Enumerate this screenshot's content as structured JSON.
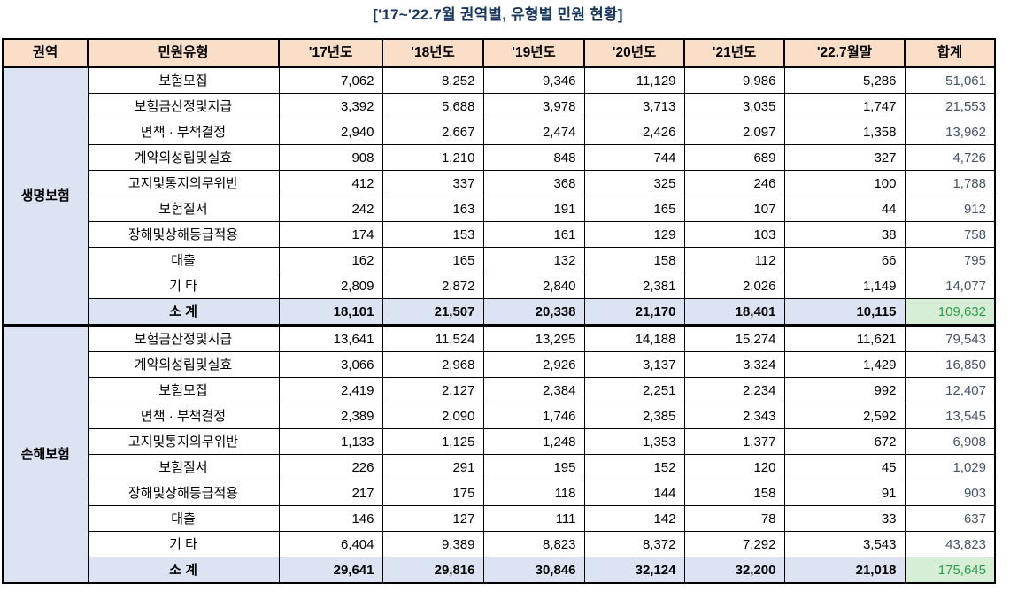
{
  "title": "['17~'22.7월 권역별, 유형별 민원 현황]",
  "colors": {
    "title_color": "#17375E",
    "header_bg": "#FBDEC7",
    "region_bg": "#DCE4F3",
    "subtotal_bg": "#DCE4F3",
    "total_col_text": "#44546A",
    "grand_total_bg": "#D6EED6",
    "grand_total_text": "#2F9E49",
    "border": "#000000"
  },
  "table": {
    "headers": [
      "권역",
      "민원유형",
      "'17년도",
      "'18년도",
      "'19년도",
      "'20년도",
      "'21년도",
      "'22.7월말",
      "합계"
    ],
    "sections": [
      {
        "region": "생명보험",
        "rows": [
          {
            "label": "보험모집",
            "values": [
              "7,062",
              "8,252",
              "9,346",
              "11,129",
              "9,986",
              "5,286",
              "51,061"
            ]
          },
          {
            "label": "보험금산정및지급",
            "values": [
              "3,392",
              "5,688",
              "3,978",
              "3,713",
              "3,035",
              "1,747",
              "21,553"
            ]
          },
          {
            "label": "면책 · 부책결정",
            "values": [
              "2,940",
              "2,667",
              "2,474",
              "2,426",
              "2,097",
              "1,358",
              "13,962"
            ]
          },
          {
            "label": "계약의성립및실효",
            "values": [
              "908",
              "1,210",
              "848",
              "744",
              "689",
              "327",
              "4,726"
            ]
          },
          {
            "label": "고지및통지의무위반",
            "values": [
              "412",
              "337",
              "368",
              "325",
              "246",
              "100",
              "1,788"
            ]
          },
          {
            "label": "보험질서",
            "values": [
              "242",
              "163",
              "191",
              "165",
              "107",
              "44",
              "912"
            ]
          },
          {
            "label": "장해및상해등급적용",
            "values": [
              "174",
              "153",
              "161",
              "129",
              "103",
              "38",
              "758"
            ]
          },
          {
            "label": "대출",
            "values": [
              "162",
              "165",
              "132",
              "158",
              "112",
              "66",
              "795"
            ]
          },
          {
            "label": "기 타",
            "values": [
              "2,809",
              "2,872",
              "2,840",
              "2,381",
              "2,026",
              "1,149",
              "14,077"
            ]
          }
        ],
        "subtotal": {
          "label": "소 계",
          "values": [
            "18,101",
            "21,507",
            "20,338",
            "21,170",
            "18,401",
            "10,115",
            "109,632"
          ]
        }
      },
      {
        "region": "손해보험",
        "rows": [
          {
            "label": "보험금산정및지급",
            "values": [
              "13,641",
              "11,524",
              "13,295",
              "14,188",
              "15,274",
              "11,621",
              "79,543"
            ]
          },
          {
            "label": "계약의성립및실효",
            "values": [
              "3,066",
              "2,968",
              "2,926",
              "3,137",
              "3,324",
              "1,429",
              "16,850"
            ]
          },
          {
            "label": "보험모집",
            "values": [
              "2,419",
              "2,127",
              "2,384",
              "2,251",
              "2,234",
              "992",
              "12,407"
            ]
          },
          {
            "label": "면책 · 부책결정",
            "values": [
              "2,389",
              "2,090",
              "1,746",
              "2,385",
              "2,343",
              "2,592",
              "13,545"
            ]
          },
          {
            "label": "고지및통지의무위반",
            "values": [
              "1,133",
              "1,125",
              "1,248",
              "1,353",
              "1,377",
              "672",
              "6,908"
            ]
          },
          {
            "label": "보험질서",
            "values": [
              "226",
              "291",
              "195",
              "152",
              "120",
              "45",
              "1,029"
            ]
          },
          {
            "label": "장해및상해등급적용",
            "values": [
              "217",
              "175",
              "118",
              "144",
              "158",
              "91",
              "903"
            ]
          },
          {
            "label": "대출",
            "values": [
              "146",
              "127",
              "111",
              "142",
              "78",
              "33",
              "637"
            ]
          },
          {
            "label": "기 타",
            "values": [
              "6,404",
              "9,389",
              "8,823",
              "8,372",
              "7,292",
              "3,543",
              "43,823"
            ]
          }
        ],
        "subtotal": {
          "label": "소 계",
          "values": [
            "29,641",
            "29,816",
            "30,846",
            "32,124",
            "32,200",
            "21,018",
            "175,645"
          ]
        }
      }
    ]
  }
}
